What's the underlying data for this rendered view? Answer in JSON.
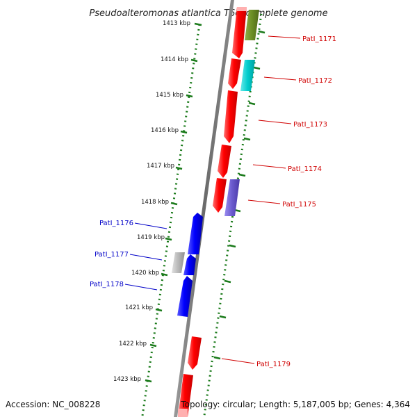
{
  "title": "Pseudoalteromonas atlantica T6c, complete genome",
  "accession": "Accession: NC_008228",
  "topology": "Topology: circular; Length: 5,187,005 bp; Genes: 4,364",
  "ruler": [
    "1413 kbp",
    "1414 kbp",
    "1415 kbp",
    "1416 kbp",
    "1417 kbp",
    "1418 kbp",
    "1419 kbp",
    "1420 kbp",
    "1421 kbp",
    "1422 kbp",
    "1423 kbp"
  ],
  "gene_labels": {
    "forward": [
      "PatI_1171",
      "PatI_1172",
      "PatI_1173",
      "PatI_1174",
      "PatI_1175",
      "PatI_1179"
    ],
    "reverse": [
      "PatI_1176",
      "PatI_1177",
      "PatI_1178"
    ]
  },
  "colors": {
    "forward_gene": "#ff0000",
    "reverse_gene": "#0000ff",
    "label_forward": "#d00000",
    "label_reverse": "#0000c8",
    "track_dots": "#1a7a1a",
    "backbone": "#777777",
    "olive_feature": "#6b8e23",
    "cyan_feature": "#00cccc",
    "purple_feature": "#6a5acd",
    "grey_feature": "#b0b0b0"
  }
}
